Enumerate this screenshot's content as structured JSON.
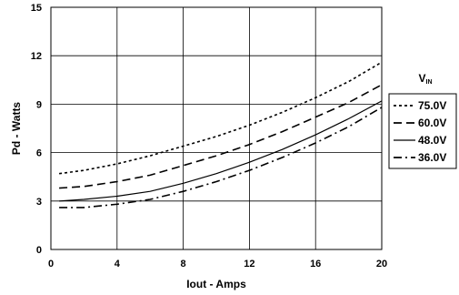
{
  "chart_data": {
    "type": "line",
    "title": "",
    "xlabel": "Iout - Amps",
    "ylabel": "Pd - Watts",
    "xlim": [
      0,
      20
    ],
    "ylim": [
      0,
      15
    ],
    "xticks": [
      "0",
      "4",
      "8",
      "12",
      "16",
      "20"
    ],
    "yticks": [
      "0",
      "3",
      "6",
      "9",
      "12",
      "15"
    ],
    "grid": true,
    "legend": {
      "title_main": "V",
      "title_sub": "IN",
      "placement": "right"
    },
    "series": [
      {
        "name": "75.0V",
        "style": "dotted",
        "x": [
          0.5,
          2,
          4,
          6,
          8,
          10,
          12,
          14,
          16,
          18,
          20
        ],
        "y": [
          4.7,
          4.9,
          5.3,
          5.8,
          6.4,
          7.0,
          7.7,
          8.5,
          9.4,
          10.4,
          11.6
        ]
      },
      {
        "name": "60.0V",
        "style": "dashed",
        "x": [
          0.5,
          2,
          4,
          6,
          8,
          10,
          12,
          14,
          16,
          18,
          20
        ],
        "y": [
          3.8,
          3.9,
          4.2,
          4.6,
          5.2,
          5.8,
          6.5,
          7.3,
          8.2,
          9.1,
          10.2
        ]
      },
      {
        "name": "48.0V",
        "style": "solid",
        "x": [
          0.5,
          2,
          4,
          6,
          8,
          10,
          12,
          14,
          16,
          18,
          20
        ],
        "y": [
          3.0,
          3.1,
          3.3,
          3.6,
          4.1,
          4.7,
          5.4,
          6.2,
          7.1,
          8.1,
          9.2
        ]
      },
      {
        "name": "36.0V",
        "style": "dashdot",
        "x": [
          0.5,
          2,
          4,
          6,
          8,
          10,
          12,
          14,
          16,
          18,
          20
        ],
        "y": [
          2.6,
          2.6,
          2.8,
          3.1,
          3.6,
          4.2,
          4.9,
          5.7,
          6.6,
          7.6,
          8.8
        ]
      }
    ]
  }
}
